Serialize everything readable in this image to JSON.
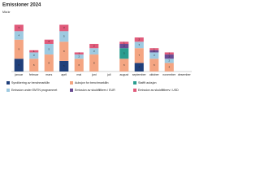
{
  "chart_data": {
    "type": "stacked-bar",
    "title": "Emissioner 2024",
    "y_label": "Mia kr",
    "categories": [
      "januar",
      "februar",
      "mars",
      "april",
      "mai",
      "juni",
      "juli",
      "august",
      "september",
      "oktober",
      "november",
      "desember"
    ],
    "ylim": [
      0,
      26
    ],
    "series": [
      {
        "name": "Syndikering av benchmarklån",
        "color": "#1f3f7a",
        "values": [
          6,
          0,
          0,
          5,
          0,
          0,
          0,
          0,
          4,
          0,
          0,
          0
        ]
      },
      {
        "name": "Auksjon for benchmarklån",
        "color": "#f4a582",
        "values": [
          9,
          6,
          8,
          9,
          6,
          8,
          0,
          6,
          7,
          6,
          4,
          0
        ]
      },
      {
        "name": "Staffit auksjon",
        "color": "#2a9d8f",
        "values": [
          0,
          0,
          0,
          0,
          0,
          0,
          0,
          5,
          0,
          0,
          0,
          0
        ]
      },
      {
        "name": "Emission under EMTN programmet",
        "color": "#9ecae1",
        "values": [
          4,
          3,
          5,
          5,
          2,
          3,
          0,
          0,
          3,
          3,
          2,
          0
        ]
      },
      {
        "name": "Emission av skuldfiltbrev i EUR",
        "color": "#6a4c93",
        "values": [
          0,
          0,
          0,
          0,
          0,
          0,
          0,
          2,
          0,
          1,
          2,
          0
        ]
      },
      {
        "name": "Emission av skuldfiltbrev i USD",
        "color": "#e05a7a",
        "values": [
          3,
          1,
          2,
          3,
          1,
          2,
          0,
          1,
          2,
          1,
          1,
          0
        ]
      }
    ]
  }
}
